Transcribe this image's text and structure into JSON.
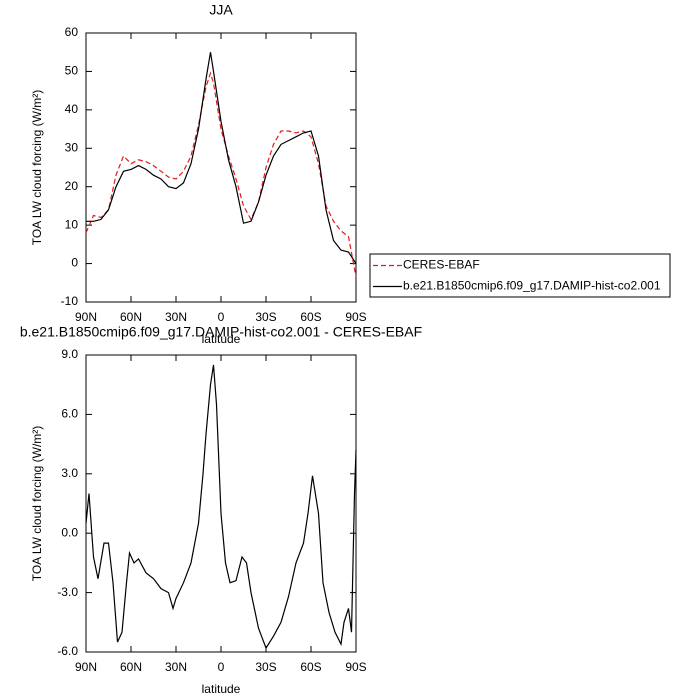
{
  "chart_data": [
    {
      "type": "line",
      "title": "JJA",
      "xlabel": "latitude",
      "ylabel": "TOA LW cloud forcing (W/m²)",
      "x": [
        90,
        85,
        80,
        75,
        70,
        65,
        60,
        55,
        50,
        45,
        40,
        35,
        30,
        25,
        20,
        15,
        10,
        7,
        5,
        0,
        -5,
        -10,
        -15,
        -20,
        -25,
        -30,
        -35,
        -40,
        -45,
        -50,
        -55,
        -60,
        -65,
        -70,
        -75,
        -80,
        -85,
        -90
      ],
      "series": [
        {
          "name": "CERES-EBAF",
          "color": "#e31a1c",
          "line_style": "dashed",
          "values": [
            8,
            12.5,
            12,
            14,
            23,
            28,
            26,
            27,
            26.5,
            25.5,
            24,
            22.5,
            22,
            24,
            28,
            36,
            46,
            49.5,
            47,
            35,
            28,
            22,
            15,
            11.5,
            16,
            25,
            31,
            34.5,
            34.5,
            34,
            34.5,
            33,
            26,
            15,
            11,
            8.5,
            7,
            -3.5
          ]
        },
        {
          "name": "b.e21.B1850cmip6.f09_g17.DAMIP-hist-co2.001",
          "color": "#000000",
          "line_style": "solid",
          "values": [
            11,
            11,
            11.5,
            14,
            20,
            24,
            24.5,
            25.5,
            24.5,
            23,
            22,
            20,
            19.5,
            21,
            26,
            35,
            48,
            55,
            50,
            37,
            27,
            20,
            10.5,
            11,
            16,
            23,
            28,
            31,
            32,
            33,
            34,
            34.5,
            28,
            14,
            6,
            3.5,
            3,
            0
          ]
        }
      ],
      "xlim": [
        90,
        -90
      ],
      "xticks": [
        {
          "value": 90,
          "label": "90N"
        },
        {
          "value": 60,
          "label": "60N"
        },
        {
          "value": 30,
          "label": "30N"
        },
        {
          "value": 0,
          "label": "0"
        },
        {
          "value": -30,
          "label": "30S"
        },
        {
          "value": -60,
          "label": "60S"
        },
        {
          "value": -90,
          "label": "90S"
        }
      ],
      "ylim": [
        -10,
        60
      ],
      "yticks": [
        -10,
        0,
        10,
        20,
        30,
        40,
        50,
        60
      ],
      "legend": "right"
    },
    {
      "type": "line",
      "title": "b.e21.B1850cmip6.f09_g17.DAMIP-hist-co2.001 - CERES-EBAF",
      "xlabel": "latitude",
      "ylabel": "TOA LW cloud forcing (W/m²)",
      "x": [
        90,
        88,
        85,
        82,
        78,
        75,
        72,
        69,
        66,
        63,
        61,
        58,
        55,
        50,
        45,
        40,
        35,
        32,
        30,
        25,
        20,
        15,
        12,
        10,
        7,
        5,
        3,
        0,
        -3,
        -6,
        -10,
        -14,
        -17,
        -20,
        -25,
        -30,
        -35,
        -40,
        -45,
        -50,
        -55,
        -58,
        -61,
        -65,
        -68,
        -72,
        -76,
        -80,
        -82,
        -85,
        -87,
        -89,
        -90
      ],
      "values": [
        0.5,
        2,
        -1.2,
        -2.3,
        -0.5,
        -0.5,
        -2.5,
        -5.5,
        -5.0,
        -2.5,
        -1.0,
        -1.5,
        -1.3,
        -2.0,
        -2.3,
        -2.8,
        -3.0,
        -3.8,
        -3.3,
        -2.5,
        -1.5,
        0.5,
        3,
        5,
        7.5,
        8.5,
        6.5,
        1,
        -1.5,
        -2.5,
        -2.4,
        -1.2,
        -1.5,
        -3,
        -4.8,
        -5.8,
        -5.2,
        -4.5,
        -3.2,
        -1.5,
        -0.5,
        1,
        2.9,
        1,
        -2.5,
        -4,
        -5,
        -5.6,
        -4.5,
        -3.8,
        -5,
        2,
        4.2
      ],
      "color": "#000000",
      "xlim": [
        90,
        -90
      ],
      "xticks": [
        {
          "value": 90,
          "label": "90N"
        },
        {
          "value": 60,
          "label": "60N"
        },
        {
          "value": 30,
          "label": "30N"
        },
        {
          "value": 0,
          "label": "0"
        },
        {
          "value": -30,
          "label": "30S"
        },
        {
          "value": -60,
          "label": "60S"
        },
        {
          "value": -90,
          "label": "90S"
        }
      ],
      "ylim": [
        -6,
        9
      ],
      "yticks": [
        {
          "value": -6,
          "label": "-6.0"
        },
        {
          "value": -3,
          "label": "-3.0"
        },
        {
          "value": 0,
          "label": "0.0"
        },
        {
          "value": 3,
          "label": "3.0"
        },
        {
          "value": 6,
          "label": "6.0"
        },
        {
          "value": 9,
          "label": "9.0"
        }
      ]
    }
  ]
}
